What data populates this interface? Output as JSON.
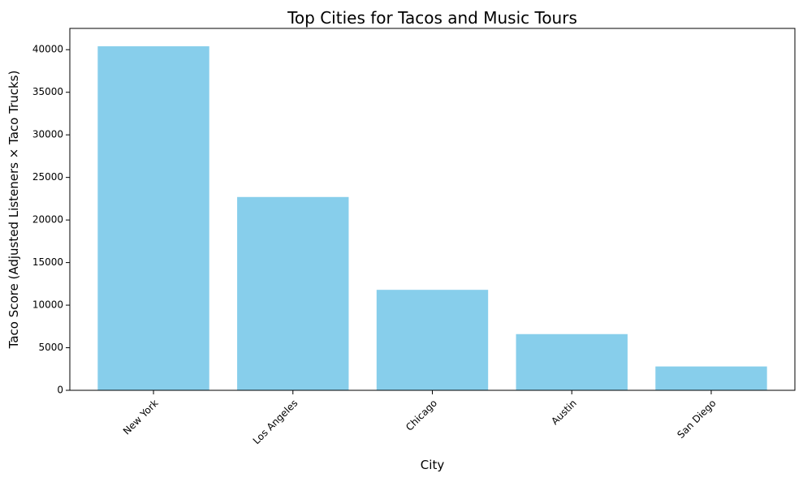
{
  "chart_data": {
    "type": "bar",
    "title": "Top Cities for Tacos and Music Tours",
    "xlabel": "City",
    "ylabel": "Taco Score (Adjusted Listeners × Taco Trucks)",
    "categories": [
      "New York",
      "Los Angeles",
      "Chicago",
      "Austin",
      "San Diego"
    ],
    "values": [
      40400,
      22700,
      11800,
      6600,
      2800
    ],
    "ylim": [
      0,
      42500
    ],
    "yticks": [
      0,
      5000,
      10000,
      15000,
      20000,
      25000,
      30000,
      35000,
      40000
    ],
    "grid": false,
    "bar_color": "#87ceeb"
  }
}
